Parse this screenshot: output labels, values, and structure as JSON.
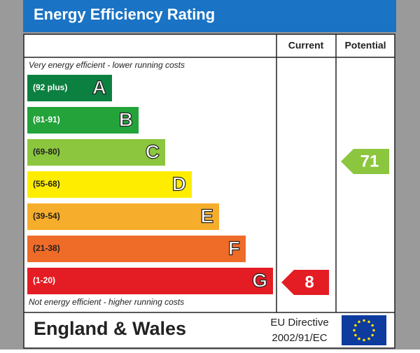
{
  "title": "Energy Efficiency Rating",
  "columns": [
    "Current",
    "Potential"
  ],
  "top_note": "Very energy efficient - lower running costs",
  "bottom_note": "Not energy efficient - higher running costs",
  "bands": [
    {
      "range": "(92 plus)",
      "letter": "A"
    },
    {
      "range": "(81-91)",
      "letter": "B"
    },
    {
      "range": "(69-80)",
      "letter": "C"
    },
    {
      "range": "(55-68)",
      "letter": "D"
    },
    {
      "range": "(39-54)",
      "letter": "E"
    },
    {
      "range": "(21-38)",
      "letter": "F"
    },
    {
      "range": "(1-20)",
      "letter": "G"
    }
  ],
  "current": 8,
  "potential": 71,
  "footer": {
    "region": "England & Wales",
    "directive_line1": "EU Directive",
    "directive_line2": "2002/91/EC"
  }
}
